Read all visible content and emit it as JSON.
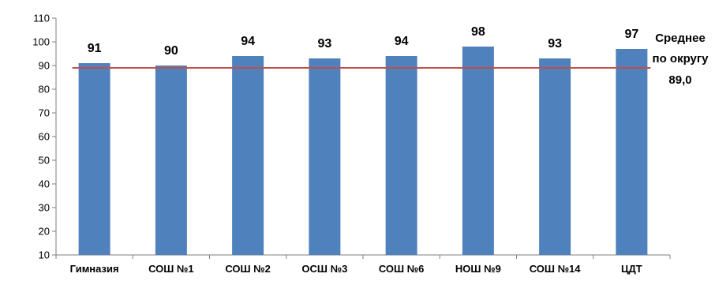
{
  "chart_data": {
    "type": "bar",
    "title": "",
    "xlabel": "",
    "ylabel": "",
    "categories": [
      "Гимназия",
      "СОШ №1",
      "СОШ №2",
      "ОСШ №3",
      "СОШ №6",
      "НОШ №9",
      "СОШ №14",
      "ЦДТ"
    ],
    "values": [
      91,
      90,
      94,
      93,
      94,
      98,
      93,
      97
    ],
    "ylim": [
      10,
      110
    ],
    "yticks": [
      10,
      20,
      30,
      40,
      50,
      60,
      70,
      80,
      90,
      100,
      110
    ],
    "grid": false,
    "data_labels": true,
    "bar_color": "#4F81BD",
    "reference_line": {
      "value": 89.0,
      "color": "#C0504D",
      "label_lines": [
        "Среднее",
        "по округу",
        "89,0"
      ]
    }
  }
}
